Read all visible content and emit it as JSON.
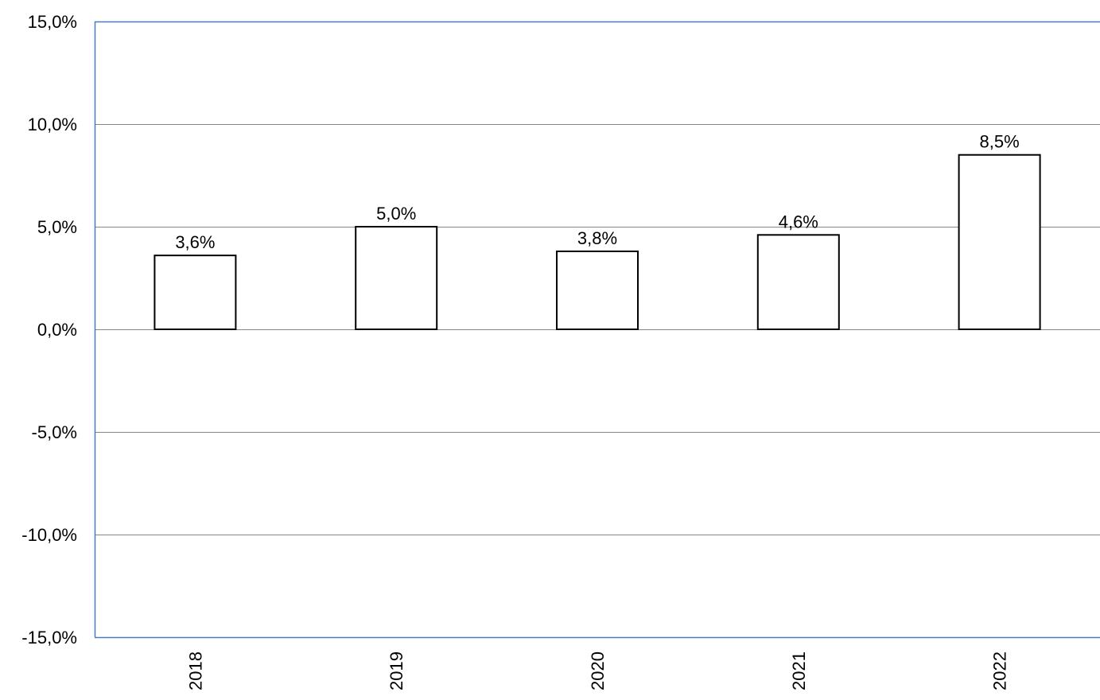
{
  "chart_data": {
    "type": "bar",
    "categories": [
      "2018",
      "2019",
      "2020",
      "2021",
      "2022"
    ],
    "values": [
      3.6,
      5.0,
      3.8,
      4.6,
      8.5
    ],
    "data_labels": [
      "3,6%",
      "5,0%",
      "3,8%",
      "4,6%",
      "8,5%"
    ],
    "title": "",
    "xlabel": "",
    "ylabel": "",
    "ylim": [
      -15,
      15
    ],
    "yticks": [
      15,
      10,
      5,
      0,
      -5,
      -10,
      -15
    ],
    "ytick_labels": [
      "15,0%",
      "10,0%",
      "5,0%",
      "0,0%",
      "-5,0%",
      "-10,0%",
      "-15,0%"
    ],
    "grid": true,
    "legend": "none",
    "colors": {
      "bar_fill": "#ffffff",
      "bar_stroke": "#000000",
      "axis": "#4a7ebb",
      "grid": "#868686"
    }
  }
}
